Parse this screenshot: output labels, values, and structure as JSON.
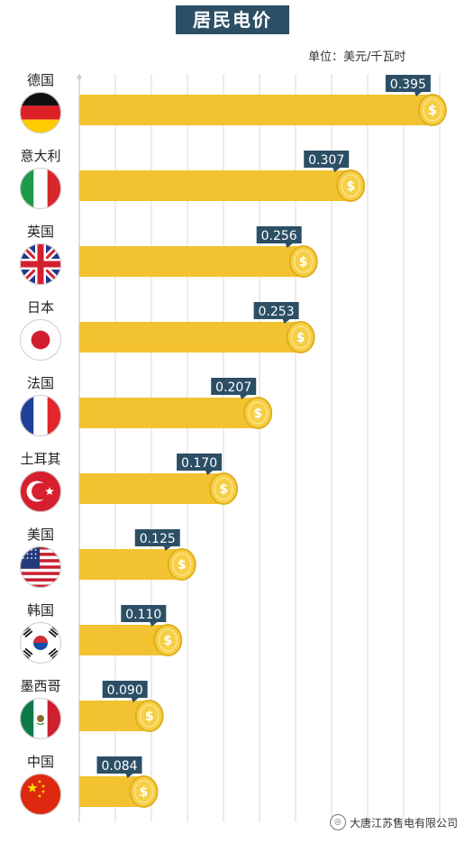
{
  "chart_data": {
    "type": "bar",
    "title": "居民电价",
    "unit": "单位：美元/千瓦时",
    "categories": [
      "德国",
      "意大利",
      "英国",
      "日本",
      "法国",
      "土耳其",
      "美国",
      "韩国",
      "墨西哥",
      "中国"
    ],
    "values": [
      0.395,
      0.307,
      0.256,
      0.253,
      0.207,
      0.17,
      0.125,
      0.11,
      0.09,
      0.084
    ],
    "value_labels": [
      "0.395",
      "0.307",
      "0.256",
      "0.253",
      "0.207",
      "0.170",
      "0.125",
      "0.110",
      "0.090",
      "0.084"
    ],
    "flags": [
      "germany-flag",
      "italy-flag",
      "uk-flag",
      "japan-flag",
      "france-flag",
      "turkey-flag",
      "usa-flag",
      "korea-flag",
      "mexico-flag",
      "china-flag"
    ],
    "coin_symbol": "$",
    "xlim": [
      0,
      0.4
    ],
    "grid": true,
    "colors": {
      "bar": "#f2c230",
      "coin": "#f6cf45",
      "label_bg": "#2c4f66",
      "title_bg": "#2c4f66"
    }
  },
  "watermark": "大唐江苏售电有限公司"
}
